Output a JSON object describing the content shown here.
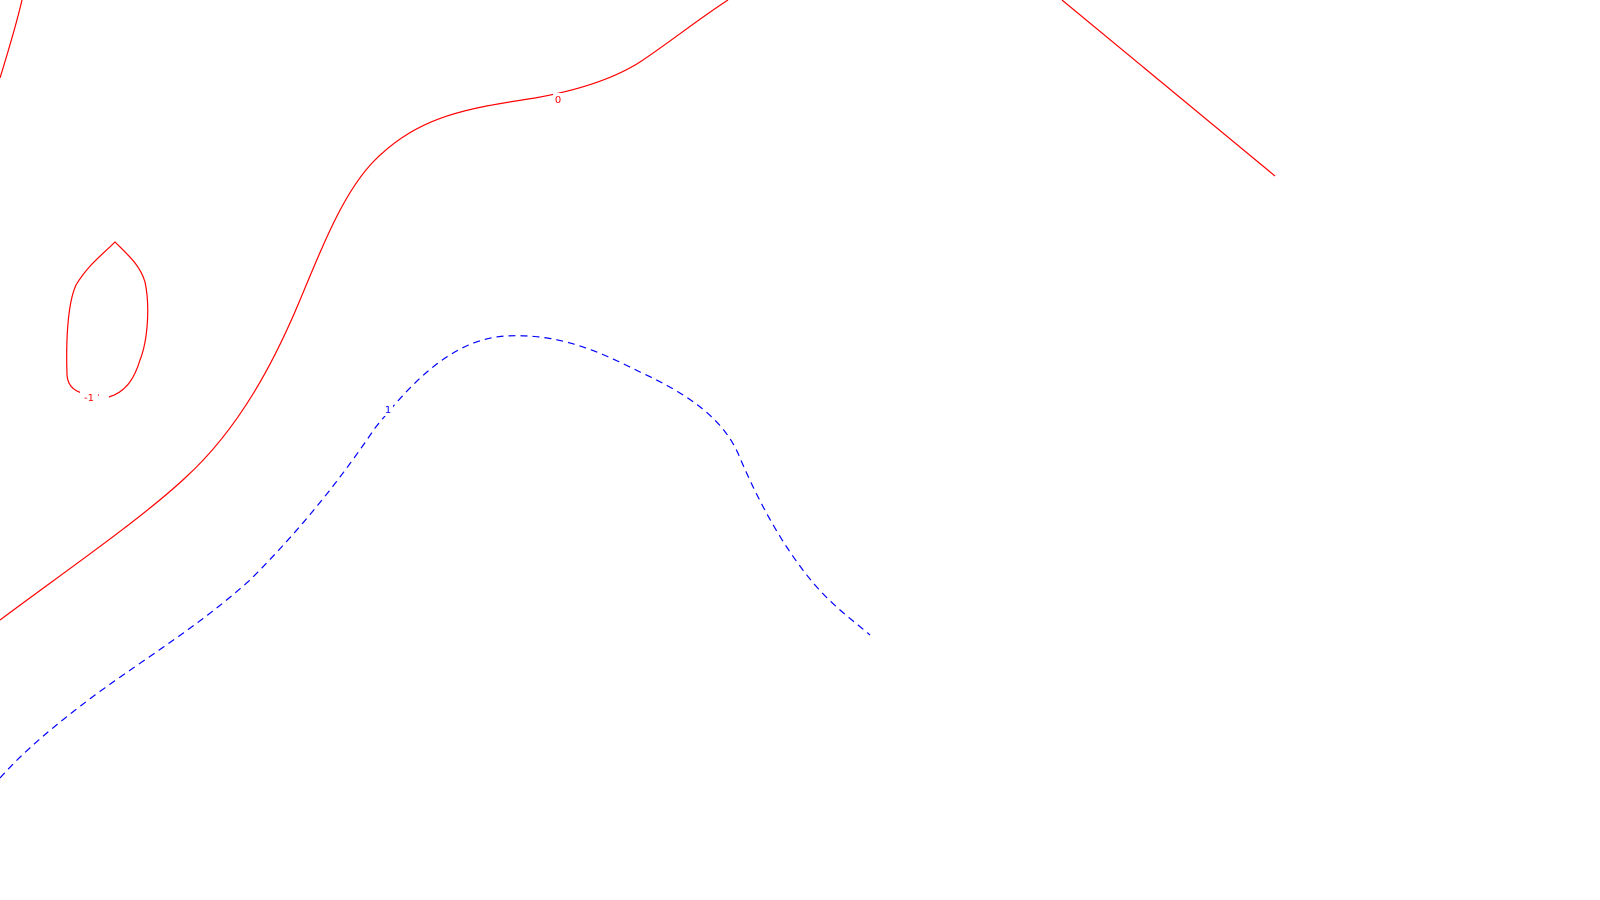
{
  "colors": {
    "background": "#ffffff",
    "negative_contour": "#ff0000",
    "positive_contour": "#0000ff"
  },
  "contours": {
    "zero": {
      "label": "0",
      "style": "solid",
      "color": "#ff0000"
    },
    "minus_one": {
      "label": "-1",
      "style": "solid",
      "color": "#ff0000"
    },
    "plus_one": {
      "label": "1",
      "style": "dashed",
      "color": "#0000ff"
    }
  }
}
